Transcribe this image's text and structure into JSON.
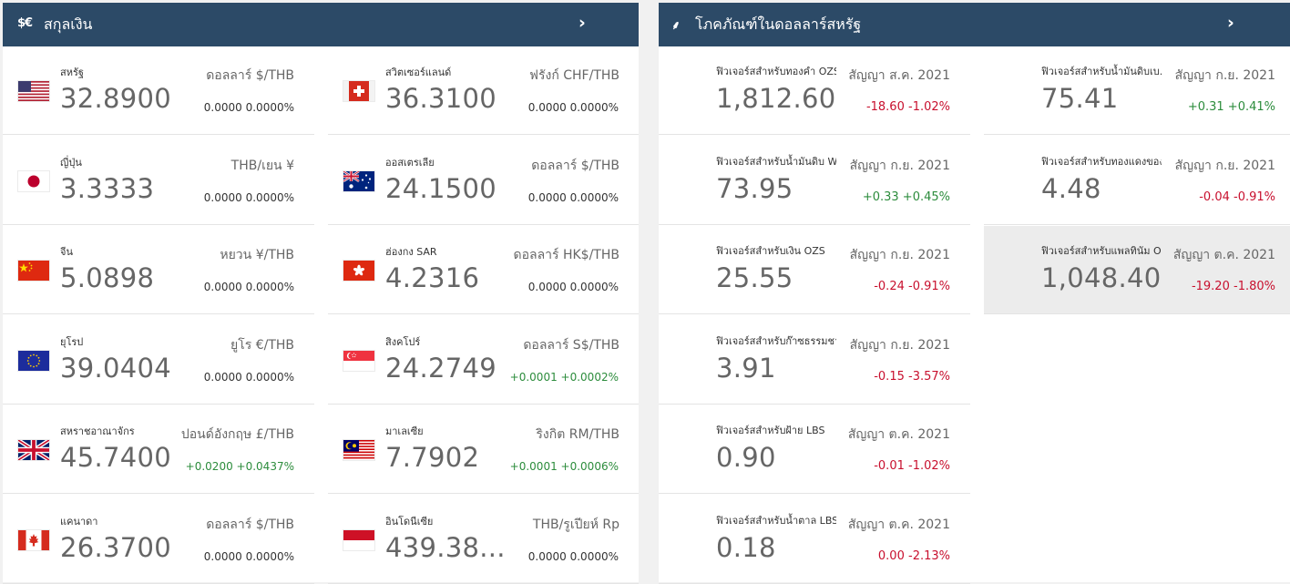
{
  "currency_panel": {
    "icon_text": "$€",
    "title": "สกุลเงิน",
    "items": [
      {
        "flag": "us",
        "name": "สหรัฐ",
        "price": "32.8900",
        "unit": "ดอลลาร์ $/THB",
        "change": "0.0000",
        "change_pct": "0.0000%",
        "dir": "flat"
      },
      {
        "flag": "jp",
        "name": "ญี่ปุ่น",
        "price": "3.3333",
        "unit": "THB/เยน ¥",
        "change": "0.0000",
        "change_pct": "0.0000%",
        "dir": "flat"
      },
      {
        "flag": "cn",
        "name": "จีน",
        "price": "5.0898",
        "unit": "หยวน ¥/THB",
        "change": "0.0000",
        "change_pct": "0.0000%",
        "dir": "flat"
      },
      {
        "flag": "eu",
        "name": "ยุโรป",
        "price": "39.0404",
        "unit": "ยูโร €/THB",
        "change": "0.0000",
        "change_pct": "0.0000%",
        "dir": "flat"
      },
      {
        "flag": "gb",
        "name": "สหราชอาณาจักร",
        "price": "45.7400",
        "unit": "ปอนด์อังกฤษ £/THB",
        "change": "+0.0200",
        "change_pct": "+0.0437%",
        "dir": "pos"
      },
      {
        "flag": "ca",
        "name": "แคนาดา",
        "price": "26.3700",
        "unit": "ดอลลาร์ $/THB",
        "change": "0.0000",
        "change_pct": "0.0000%",
        "dir": "flat"
      },
      {
        "flag": "ch",
        "name": "สวิตเซอร์แลนด์",
        "price": "36.3100",
        "unit": "ฟรังก์ CHF/THB",
        "change": "0.0000",
        "change_pct": "0.0000%",
        "dir": "flat"
      },
      {
        "flag": "au",
        "name": "ออสเตรเลีย",
        "price": "24.1500",
        "unit": "ดอลลาร์ $/THB",
        "change": "0.0000",
        "change_pct": "0.0000%",
        "dir": "flat"
      },
      {
        "flag": "hk",
        "name": "ฮ่องกง SAR",
        "price": "4.2316",
        "unit": "ดอลลาร์ HK$/THB",
        "change": "0.0000",
        "change_pct": "0.0000%",
        "dir": "flat"
      },
      {
        "flag": "sg",
        "name": "สิงคโปร์",
        "price": "24.2749",
        "unit": "ดอลลาร์ S$/THB",
        "change": "+0.0001",
        "change_pct": "+0.0002%",
        "dir": "pos"
      },
      {
        "flag": "my",
        "name": "มาเลเซีย",
        "price": "7.7902",
        "unit": "ริงกิต RM/THB",
        "change": "+0.0001",
        "change_pct": "+0.0006%",
        "dir": "pos"
      },
      {
        "flag": "id",
        "name": "อินโดนีเซีย",
        "price": "439.38...",
        "unit": "THB/รูเปียห์ Rp",
        "change": "0.0000",
        "change_pct": "0.0000%",
        "dir": "flat"
      }
    ]
  },
  "commodity_panel": {
    "icon_text": "⸙",
    "title": "โภคภัณฑ์ในดอลลาร์สหรัฐ",
    "items": [
      {
        "name": "ฟิวเจอร์สสำหรับทองคำ OZS",
        "contract": "สัญญา ส.ค. 2021",
        "price": "1,812.60",
        "change": "-18.60",
        "change_pct": "-1.02%",
        "dir": "neg"
      },
      {
        "name": "ฟิวเจอร์สสำหรับน้ำมันดิบ W...",
        "contract": "สัญญา ก.ย. 2021",
        "price": "73.95",
        "change": "+0.33",
        "change_pct": "+0.45%",
        "dir": "pos"
      },
      {
        "name": "ฟิวเจอร์สสำหรับเงิน OZS",
        "contract": "สัญญา ก.ย. 2021",
        "price": "25.55",
        "change": "-0.24",
        "change_pct": "-0.91%",
        "dir": "neg"
      },
      {
        "name": "ฟิวเจอร์สสำหรับก๊าซธรรมชา...",
        "contract": "สัญญา ก.ย. 2021",
        "price": "3.91",
        "change": "-0.15",
        "change_pct": "-3.57%",
        "dir": "neg"
      },
      {
        "name": "ฟิวเจอร์สสำหรับฝ้าย LBS",
        "contract": "สัญญา ต.ค. 2021",
        "price": "0.90",
        "change": "-0.01",
        "change_pct": "-1.02%",
        "dir": "neg"
      },
      {
        "name": "ฟิวเจอร์สสำหรับน้ำตาล LBS",
        "contract": "สัญญา ต.ค. 2021",
        "price": "0.18",
        "change": "0.00",
        "change_pct": "-2.13%",
        "dir": "neg"
      },
      {
        "name": "ฟิวเจอร์สสำหรับน้ำมันดิบเบ...",
        "contract": "สัญญา ก.ย. 2021",
        "price": "75.41",
        "change": "+0.31",
        "change_pct": "+0.41%",
        "dir": "pos",
        "highlight": false
      },
      {
        "name": "ฟิวเจอร์สสำหรับทองแดงของ...",
        "contract": "สัญญา ก.ย. 2021",
        "price": "4.48",
        "change": "-0.04",
        "change_pct": "-0.91%",
        "dir": "neg",
        "highlight": false
      },
      {
        "name": "ฟิวเจอร์สสำหรับแพลทินัม O...",
        "contract": "สัญญา ต.ค. 2021",
        "price": "1,048.40",
        "change": "-19.20",
        "change_pct": "-1.80%",
        "dir": "neg",
        "highlight": true
      }
    ]
  },
  "colors": {
    "header_bg": "#2c4a67",
    "positive": "#2c8c3c",
    "negative": "#c8102e"
  }
}
